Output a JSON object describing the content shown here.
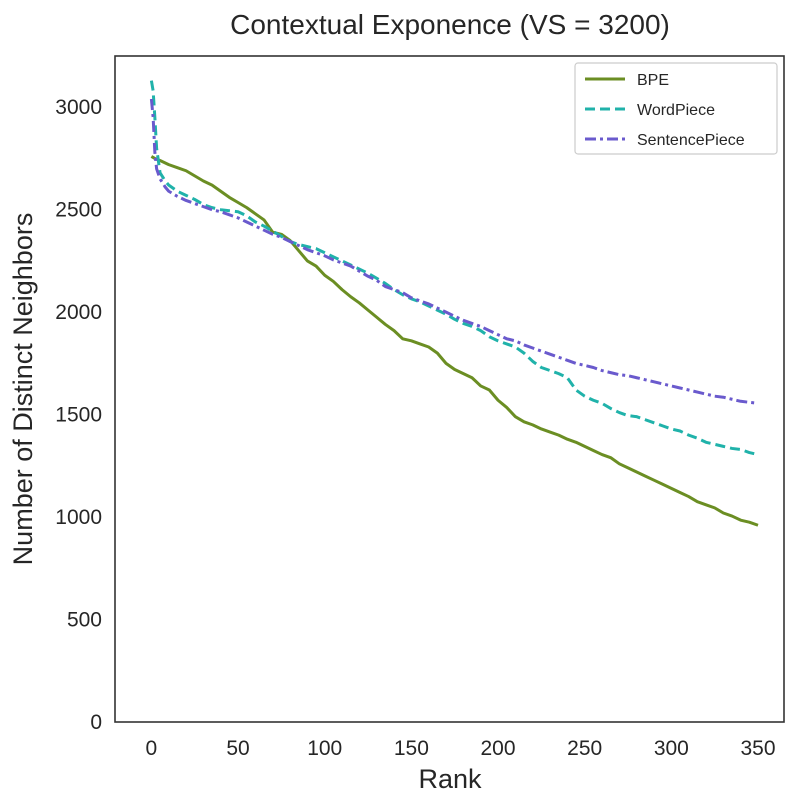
{
  "chart_data": {
    "type": "line",
    "title": "Contextual Exponence (VS = 3200)",
    "xlabel": "Rank",
    "ylabel": "Number of Distinct Neighbors",
    "xlim": [
      -21,
      365
    ],
    "ylim": [
      0,
      3250
    ],
    "xticks": [
      0,
      50,
      100,
      150,
      200,
      250,
      300,
      350
    ],
    "yticks": [
      0,
      500,
      1000,
      1500,
      2000,
      2500,
      3000
    ],
    "grid": false,
    "legend_position": "top-right",
    "series": [
      {
        "name": "BPE",
        "color": "#6b8e23",
        "dash": "solid",
        "x": [
          0,
          1,
          2,
          5,
          10,
          15,
          20,
          25,
          30,
          35,
          40,
          45,
          50,
          55,
          60,
          65,
          70,
          75,
          80,
          85,
          90,
          95,
          100,
          105,
          110,
          115,
          120,
          125,
          130,
          135,
          140,
          145,
          150,
          155,
          160,
          165,
          170,
          175,
          180,
          185,
          190,
          195,
          200,
          205,
          210,
          215,
          220,
          225,
          230,
          235,
          240,
          245,
          250,
          255,
          260,
          265,
          270,
          275,
          280,
          285,
          290,
          295,
          300,
          305,
          310,
          315,
          320,
          325,
          330,
          335,
          340,
          345,
          350
        ],
        "y": [
          2760,
          2755,
          2750,
          2740,
          2720,
          2705,
          2690,
          2665,
          2640,
          2620,
          2590,
          2560,
          2535,
          2510,
          2480,
          2450,
          2390,
          2380,
          2350,
          2300,
          2250,
          2225,
          2180,
          2150,
          2110,
          2075,
          2045,
          2010,
          1975,
          1940,
          1910,
          1870,
          1860,
          1845,
          1830,
          1800,
          1750,
          1720,
          1700,
          1680,
          1640,
          1620,
          1570,
          1535,
          1490,
          1465,
          1450,
          1430,
          1415,
          1400,
          1380,
          1365,
          1345,
          1325,
          1305,
          1290,
          1260,
          1240,
          1220,
          1200,
          1180,
          1160,
          1140,
          1120,
          1100,
          1075,
          1060,
          1045,
          1020,
          1005,
          985,
          975,
          960
        ]
      },
      {
        "name": "WordPiece",
        "color": "#20b2aa",
        "dash": "dashed",
        "x": [
          0,
          1,
          2,
          3,
          5,
          8,
          10,
          15,
          20,
          25,
          30,
          35,
          40,
          45,
          50,
          55,
          60,
          65,
          70,
          75,
          80,
          85,
          90,
          95,
          100,
          105,
          110,
          115,
          120,
          125,
          130,
          135,
          140,
          145,
          150,
          155,
          160,
          165,
          170,
          175,
          180,
          185,
          190,
          195,
          200,
          205,
          210,
          215,
          220,
          225,
          230,
          235,
          240,
          245,
          250,
          255,
          260,
          265,
          270,
          275,
          280,
          285,
          290,
          295,
          300,
          305,
          310,
          315,
          320,
          325,
          330,
          335,
          340,
          345,
          350
        ],
        "y": [
          3130,
          3080,
          2950,
          2800,
          2680,
          2640,
          2620,
          2590,
          2570,
          2550,
          2525,
          2510,
          2500,
          2495,
          2490,
          2470,
          2440,
          2420,
          2395,
          2370,
          2345,
          2330,
          2320,
          2310,
          2290,
          2270,
          2250,
          2230,
          2210,
          2190,
          2165,
          2140,
          2110,
          2085,
          2065,
          2050,
          2030,
          2010,
          1990,
          1965,
          1945,
          1930,
          1910,
          1880,
          1860,
          1845,
          1830,
          1800,
          1760,
          1730,
          1715,
          1700,
          1680,
          1620,
          1590,
          1570,
          1555,
          1530,
          1510,
          1495,
          1490,
          1475,
          1460,
          1445,
          1430,
          1420,
          1400,
          1385,
          1365,
          1355,
          1345,
          1335,
          1330,
          1315,
          1305
        ]
      },
      {
        "name": "SentencePiece",
        "color": "#6a5acd",
        "dash": "dashdot",
        "x": [
          0,
          1,
          2,
          3,
          5,
          8,
          10,
          15,
          20,
          25,
          30,
          35,
          40,
          45,
          50,
          55,
          60,
          65,
          70,
          75,
          80,
          85,
          90,
          95,
          100,
          105,
          110,
          115,
          120,
          125,
          130,
          135,
          140,
          145,
          150,
          155,
          160,
          165,
          170,
          175,
          180,
          185,
          190,
          195,
          200,
          205,
          210,
          215,
          220,
          225,
          230,
          235,
          240,
          245,
          250,
          255,
          260,
          265,
          270,
          275,
          280,
          285,
          290,
          295,
          300,
          305,
          310,
          315,
          320,
          325,
          330,
          335,
          340,
          345,
          350
        ],
        "y": [
          3040,
          2950,
          2780,
          2700,
          2650,
          2610,
          2590,
          2565,
          2545,
          2530,
          2515,
          2500,
          2490,
          2475,
          2460,
          2440,
          2420,
          2400,
          2380,
          2365,
          2345,
          2325,
          2305,
          2290,
          2275,
          2255,
          2240,
          2225,
          2200,
          2175,
          2155,
          2125,
          2110,
          2095,
          2070,
          2055,
          2040,
          2020,
          2000,
          1980,
          1960,
          1945,
          1930,
          1910,
          1890,
          1870,
          1860,
          1840,
          1825,
          1810,
          1795,
          1780,
          1765,
          1750,
          1740,
          1730,
          1715,
          1705,
          1695,
          1690,
          1680,
          1670,
          1660,
          1650,
          1640,
          1630,
          1620,
          1610,
          1600,
          1590,
          1585,
          1575,
          1565,
          1560,
          1555
        ]
      }
    ]
  }
}
